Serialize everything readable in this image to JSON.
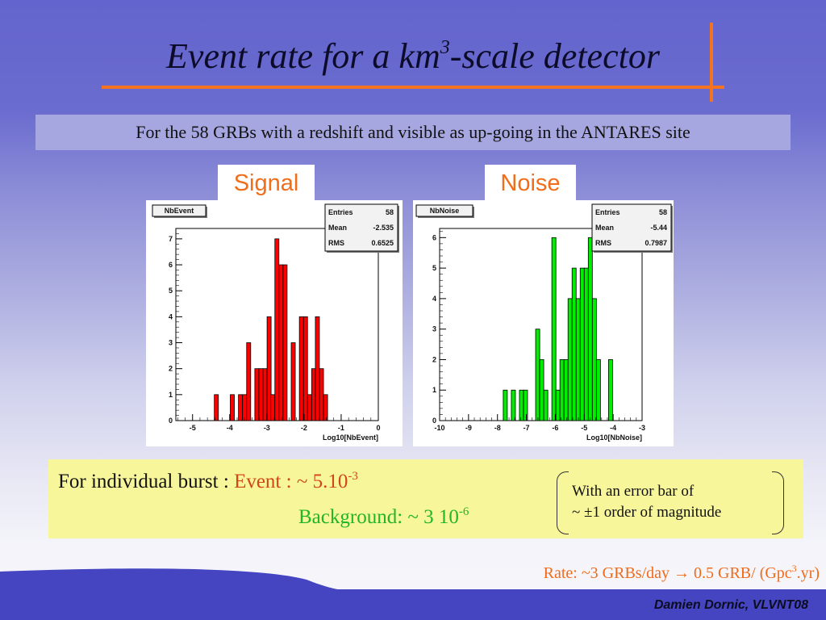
{
  "slide": {
    "title_main": "Event rate for a km",
    "title_sup": "3",
    "title_rest": "-scale detector",
    "subtitle": "For the 58 GRBs with a redshift and visible as up-going in the ANTARES site",
    "signal_tag": "Signal",
    "noise_tag": "Noise",
    "info": {
      "prefix": "For individual burst : ",
      "event_label": "Event : ~ 5.10",
      "event_exp": "-3",
      "background_label": "Background: ~ 3 10",
      "background_exp": "-6",
      "note_line1": "With an error bar of",
      "note_line2": "~ ±1 order of magnitude"
    },
    "rate_text": "Rate: ~3 GRBs/day → 0.5 GRB/ (Gpc",
    "rate_sup": "3",
    "rate_end": ".yr)",
    "credit": "Damien Dornic, VLVNT08"
  },
  "colors": {
    "accent_orange": "#f4731f",
    "signal_fill": "#ff0000",
    "noise_fill": "#00ee00",
    "event_text": "#d1461b",
    "background_text": "#22b52a",
    "footer_band": "#4545c1",
    "info_box": "#f8f69a"
  },
  "chart_data": [
    {
      "type": "bar",
      "name": "NbEvent",
      "title": "NbEvent",
      "xlabel": "Log10[NbEvent]",
      "ylabel": "",
      "xlim": [
        -5.45,
        0
      ],
      "ylim": [
        0,
        7.4
      ],
      "xticks": [
        -5,
        -4,
        -3,
        -2,
        -1,
        0
      ],
      "yticks": [
        0,
        1,
        2,
        3,
        4,
        5,
        6,
        7
      ],
      "bin_width": 0.109,
      "stats": {
        "Entries": "58",
        "Mean": "-2.535",
        "RMS": "0.6525"
      },
      "x": [
        -4.36,
        -3.93,
        -3.71,
        -3.6,
        -3.49,
        -3.27,
        -3.16,
        -3.05,
        -2.94,
        -2.84,
        -2.73,
        -2.62,
        -2.51,
        -2.29,
        -2.07,
        -1.96,
        -1.85,
        -1.74,
        -1.64,
        -1.53,
        -1.42
      ],
      "values": [
        1,
        1,
        1,
        1,
        3,
        2,
        2,
        2,
        4,
        1,
        7,
        6,
        6,
        3,
        4,
        4,
        1,
        2,
        4,
        2,
        1
      ]
    },
    {
      "type": "bar",
      "name": "NbNoise",
      "title": "NbNoise",
      "xlabel": "Log10[NbNoise]",
      "ylabel": "",
      "xlim": [
        -10,
        -3
      ],
      "ylim": [
        0,
        6.3
      ],
      "xticks": [
        -10,
        -9,
        -8,
        -7,
        -6,
        -5,
        -4,
        -3
      ],
      "yticks": [
        0,
        1,
        2,
        3,
        4,
        5,
        6
      ],
      "bin_width": 0.14,
      "stats": {
        "Entries": "58",
        "Mean": "-5.44",
        "RMS": "0.7987"
      },
      "x": [
        -7.73,
        -7.45,
        -7.17,
        -7.03,
        -6.61,
        -6.47,
        -6.33,
        -6.05,
        -5.91,
        -5.77,
        -5.63,
        -5.49,
        -5.35,
        -5.21,
        -5.07,
        -4.93,
        -4.79,
        -4.65,
        -4.51,
        -4.09
      ],
      "values": [
        1,
        1,
        1,
        1,
        3,
        2,
        1,
        6,
        1,
        2,
        2,
        4,
        5,
        4,
        5,
        5,
        6,
        4,
        2,
        2
      ]
    }
  ]
}
